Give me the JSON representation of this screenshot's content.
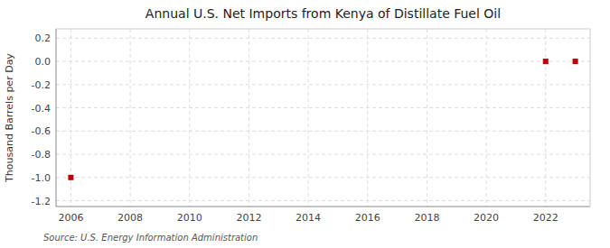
{
  "chart_data": {
    "type": "scatter",
    "title": "Annual U.S. Net Imports from Kenya of Distillate Fuel Oil",
    "y_label": "Thousand Barrels per Day",
    "source": "Source: U.S. Energy Information Administration",
    "x": [
      2006,
      2022,
      2023
    ],
    "values": [
      -1.0,
      0.0,
      0.0
    ],
    "color": "#c00000",
    "marker": "square",
    "xlim": [
      2005.5,
      2023.5
    ],
    "ylim": [
      -1.25,
      0.28
    ],
    "xticks": [
      2006,
      2008,
      2010,
      2012,
      2014,
      2016,
      2018,
      2020,
      2022
    ],
    "yticks": [
      0.2,
      {
        "value": 0.0,
        "label": "0.0"
      },
      -0.2,
      -0.4,
      -0.6,
      -0.8,
      {
        "value": -1.0,
        "label": "-1.0"
      },
      -1.2
    ],
    "grid": true
  }
}
